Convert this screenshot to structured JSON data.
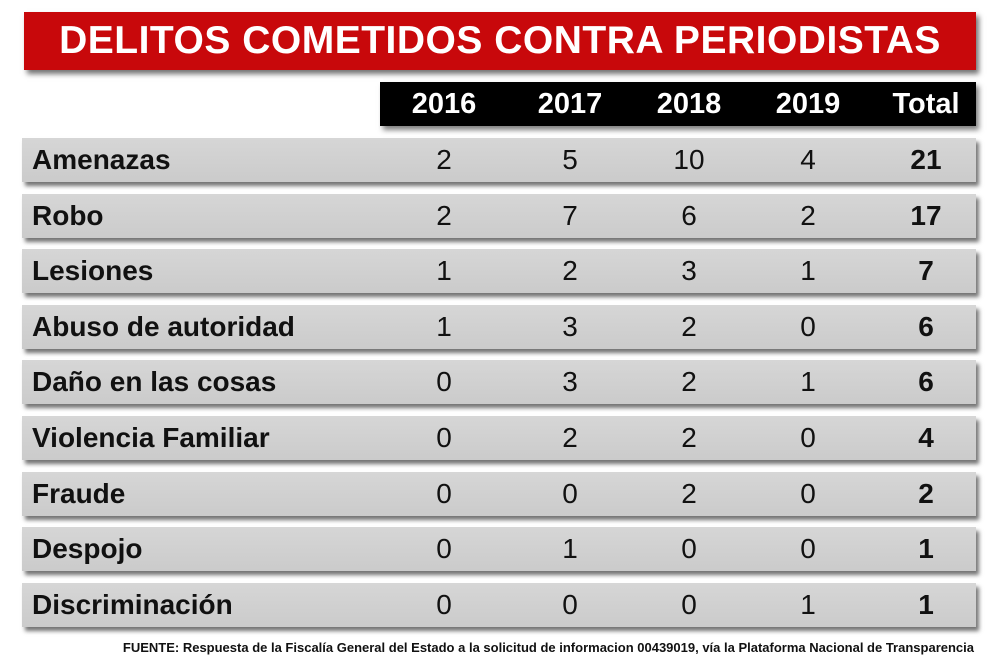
{
  "title": "DELITOS COMETIDOS CONTRA PERIODISTAS",
  "source": "FUENTE: Respuesta de la Fiscalía General del Estado a la solicitud de informacion 00439019, vía la Plataforma Nacional de Transparencia",
  "colors": {
    "title_background": "#c8080b",
    "header_background": "#000000",
    "row_background": "#d3d3d3"
  },
  "chart_data": {
    "type": "table",
    "title": "DELITOS COMETIDOS CONTRA PERIODISTAS",
    "columns": [
      "2016",
      "2017",
      "2018",
      "2019",
      "Total"
    ],
    "rows": [
      {
        "label": "Amenazas",
        "values": [
          2,
          5,
          10,
          4,
          21
        ]
      },
      {
        "label": "Robo",
        "values": [
          2,
          7,
          6,
          2,
          17
        ]
      },
      {
        "label": "Lesiones",
        "values": [
          1,
          2,
          3,
          1,
          7
        ]
      },
      {
        "label": "Abuso de autoridad",
        "values": [
          1,
          3,
          2,
          0,
          6
        ]
      },
      {
        "label": "Daño en las cosas",
        "values": [
          0,
          3,
          2,
          1,
          6
        ]
      },
      {
        "label": "Violencia Familiar",
        "values": [
          0,
          2,
          2,
          0,
          4
        ]
      },
      {
        "label": "Fraude",
        "values": [
          0,
          0,
          2,
          0,
          2
        ]
      },
      {
        "label": "Despojo",
        "values": [
          0,
          1,
          0,
          0,
          1
        ]
      },
      {
        "label": "Discriminación",
        "values": [
          0,
          0,
          0,
          1,
          1
        ]
      }
    ]
  }
}
